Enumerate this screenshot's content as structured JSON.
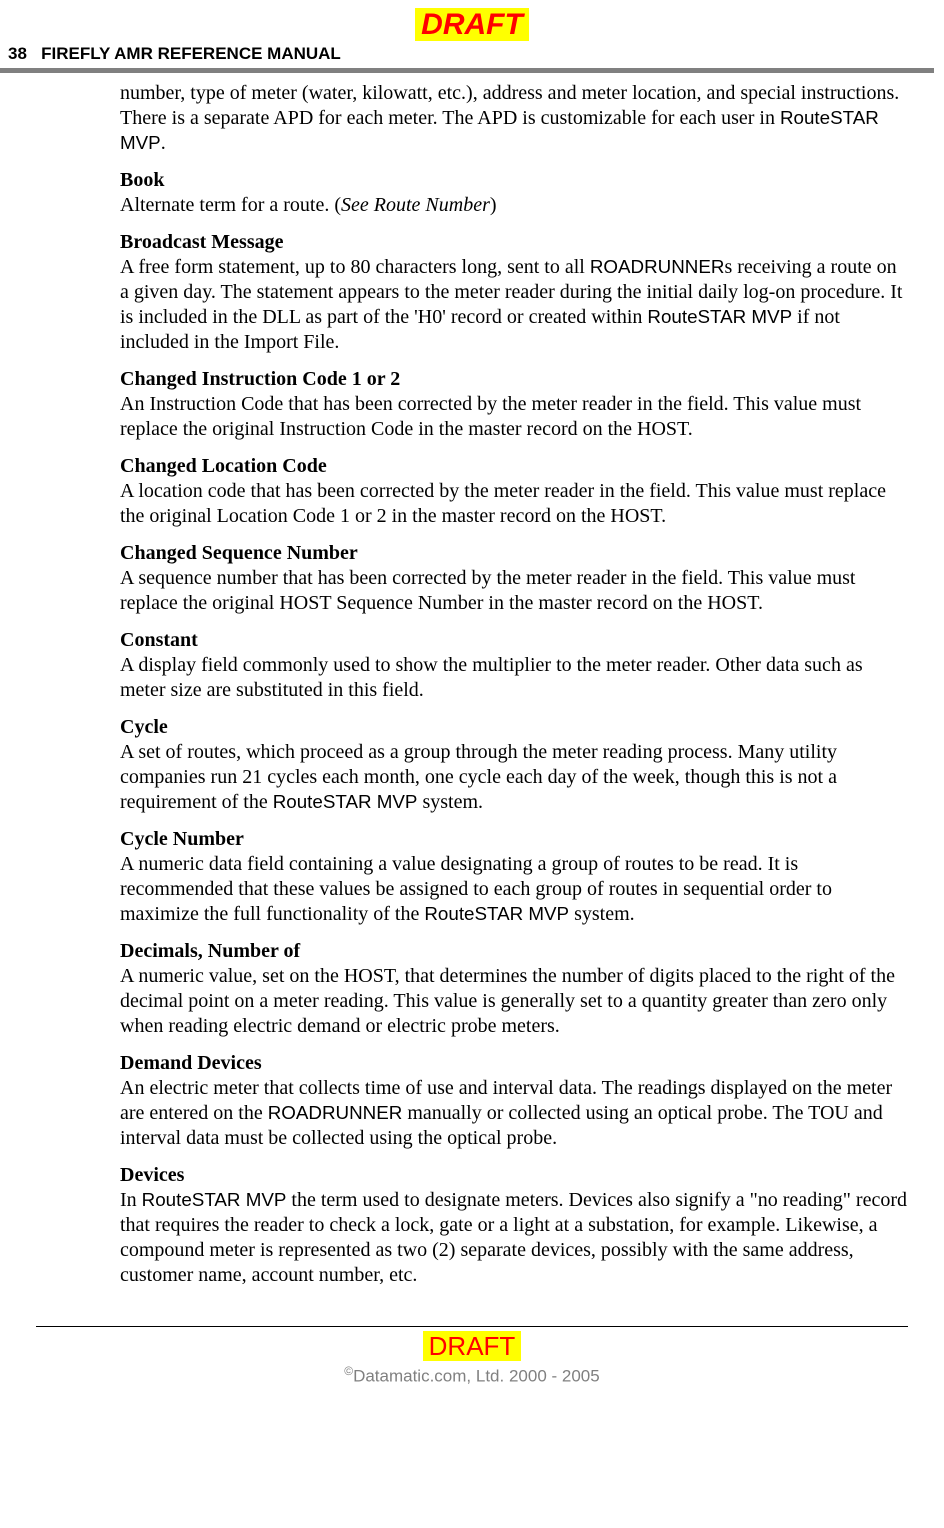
{
  "draft_label": "DRAFT",
  "header": {
    "page_num": "38",
    "title": "FIREFLY AMR REFERENCE MANUAL"
  },
  "intro": {
    "part1": "number, type of meter (water, kilowatt, etc.), address and meter location, and special instructions. There is a separate APD for each meter. The APD is customizable for each user in ",
    "sans1": "RouteSTAR MVP",
    "tail": "."
  },
  "entries": {
    "book": {
      "term": "Book",
      "d1": "Alternate term for a route. (",
      "italic": "See Route Number",
      "d2": ")"
    },
    "broadcast": {
      "term": "Broadcast Message",
      "d1": "A free form statement, up to 80 characters long, sent to all ",
      "sans1": "ROADRUNNER",
      "d2": "s receiving a route on a given day. The statement appears to the meter reader during the initial daily log-on procedure. It is included in the DLL as part of the 'H0' record or created within ",
      "sans2": "RouteSTAR MVP",
      "d3": " if not included in the Import File."
    },
    "changed_instr": {
      "term": "Changed Instruction Code 1 or 2",
      "d1": "An Instruction Code that has been corrected by the meter reader in the field. This value must replace the original Instruction Code in the master record on the HOST."
    },
    "changed_loc": {
      "term": "Changed Location Code",
      "d1": "A location code that has been corrected by the meter reader in the field. This value must replace the original Location Code 1 or 2 in the master record on the HOST."
    },
    "changed_seq": {
      "term": "Changed Sequence Number",
      "d1": "A sequence number that has been corrected by the meter reader in the field. This value must replace the original HOST Sequence Number in the master record on the HOST."
    },
    "constant": {
      "term": "Constant",
      "d1": "A display field commonly used to show the multiplier to the meter reader. Other data such as meter size are substituted in this field."
    },
    "cycle": {
      "term": "Cycle",
      "d1": "A set of routes, which proceed as a group through the meter reading process. Many utility companies run 21 cycles each month, one cycle each day of the week, though this is not a requirement of the ",
      "sans1": "RouteSTAR MVP",
      "d2": " system."
    },
    "cycle_num": {
      "term": "Cycle Number",
      "d1": "A numeric data field containing a value designating a group of routes to be read. It is recommended that these values be assigned to each group of routes in sequential order to maximize the full functionality of the ",
      "sans1": "RouteSTAR MVP",
      "d2": " system."
    },
    "decimals": {
      "term": "Decimals, Number of",
      "d1": "A numeric value, set on the HOST, that determines the number of digits placed to the right of the decimal point on a meter reading. This value is generally set to a quantity greater than zero only when reading electric demand or electric probe meters."
    },
    "demand": {
      "term": "Demand Devices",
      "d1": "An electric meter that collects time of use and interval data. The readings displayed on the meter are entered on the ",
      "sans1": "ROADRUNNER",
      "d2": " manually or collected using an optical probe. The TOU and interval data must be collected using the optical probe."
    },
    "devices": {
      "term": "Devices",
      "d1": "In ",
      "sans1": "RouteSTAR MVP",
      "d2": " the term used to designate meters. Devices also signify a \"no reading\" record that requires the reader to check a lock, gate or a light at a substation, for example. Likewise, a compound meter is represented as two (2) separate devices, possibly with the same address, customer name, account number, etc."
    }
  },
  "footer": {
    "draft": "DRAFT",
    "copyright": "Datamatic.com, Ltd. 2000 - 2005"
  }
}
